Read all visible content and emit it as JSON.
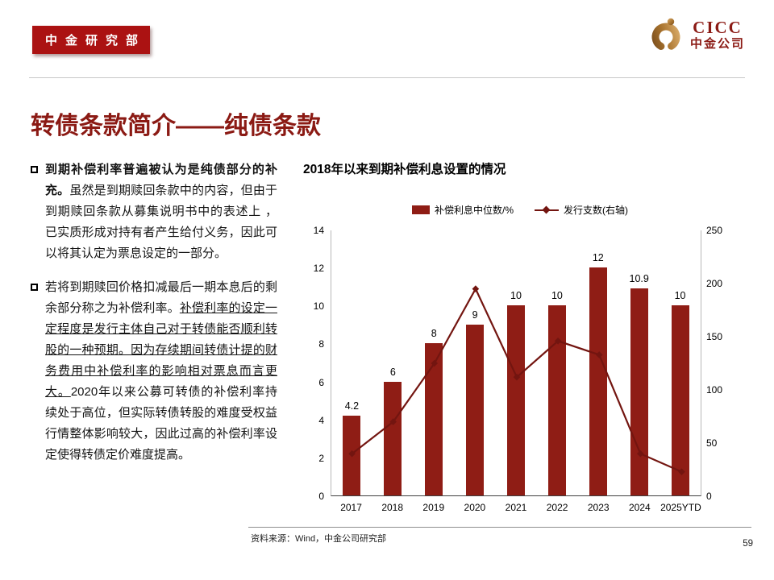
{
  "header": {
    "badge": "中金研究部",
    "logo": {
      "brand": "CICC",
      "company": "中金公司"
    }
  },
  "title": "转债条款简介——纯债条款",
  "colors": {
    "accent": "#8b1a14",
    "badge": "#ab1212",
    "bar": "#8f1d15",
    "line": "#731510",
    "logo_gold": "#a9742f"
  },
  "bullets": [
    {
      "segments": [
        {
          "text": "到期补偿利率普遍被认为是纯债部分的补充。",
          "bold": true,
          "underline": false
        },
        {
          "text": "虽然是到期赎回条款中的内容，但由于到期赎回条款从募集说明书中的表述上 ，已实质形成对持有者产生给付义务，因此可以将其认定为票息设定的一部分。",
          "bold": false,
          "underline": false
        }
      ]
    },
    {
      "segments": [
        {
          "text": "若将到期赎回价格扣减最后一期本息后的剩余部分称之为补偿利率。",
          "bold": false,
          "underline": false
        },
        {
          "text": "补偿利率的设定一定程度是发行主体自己对于转债能否顺利转股的一种预期。因为存续期间转债计提的财务费用中补偿利率的影响相对票息而言更大。",
          "bold": false,
          "underline": true
        },
        {
          "text": "2020年以来公募可转债的补偿利率持续处于高位，但实际转债转股的难度受权益行情整体影响较大，因此过高的补偿利率设定使得转债定价难度提高。",
          "bold": false,
          "underline": false
        }
      ]
    }
  ],
  "chart_data": {
    "type": "bar",
    "subtype": "combo-bar-line",
    "title": "2018年以来到期补偿利息设置的情况",
    "categories": [
      "2017",
      "2018",
      "2019",
      "2020",
      "2021",
      "2022",
      "2023",
      "2024",
      "2025YTD"
    ],
    "series": [
      {
        "name": "补偿利息中位数/%",
        "type": "bar",
        "axis": "left",
        "values": [
          4.2,
          6,
          8,
          9,
          10,
          10,
          12,
          10.9,
          10
        ],
        "labels": [
          "4.2",
          "6",
          "8",
          "9",
          "10",
          "10",
          "12",
          "10.9",
          "10"
        ],
        "color": "#8f1d15"
      },
      {
        "name": "发行支数(右轴)",
        "type": "line",
        "axis": "right",
        "values": [
          40,
          70,
          125,
          195,
          112,
          146,
          133,
          40,
          23
        ],
        "color": "#731510"
      }
    ],
    "left_axis": {
      "min": 0,
      "max": 14,
      "ticks": [
        14,
        12,
        10,
        8,
        6,
        4,
        2,
        0
      ]
    },
    "right_axis": {
      "min": 0,
      "max": 250,
      "ticks": [
        250,
        200,
        150,
        100,
        50,
        0
      ]
    },
    "legend_position": "top",
    "grid": false
  },
  "footer": {
    "source": "资料来源：Wind，中金公司研究部",
    "page": "59"
  }
}
